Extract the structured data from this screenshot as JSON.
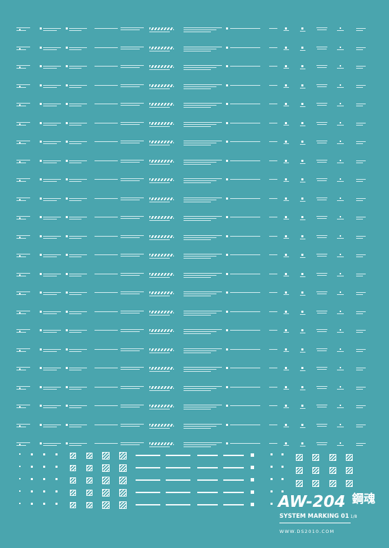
{
  "sheet": {
    "background_color": "#4aa5ae",
    "marking_color": "#f4fbfc",
    "logo": {
      "title": "AW-204",
      "subtitle": "SYSTEM MARKING 01",
      "subtitle_scale": "1/8",
      "url": "WWW.DS2010.COM",
      "kanji": "鋼魂"
    }
  }
}
